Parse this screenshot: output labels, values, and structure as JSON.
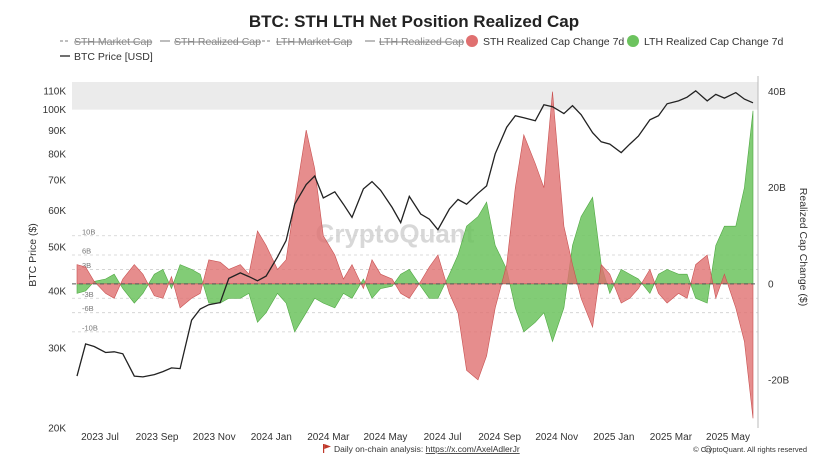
{
  "title": "BTC: STH LTH Net Position Realized Cap",
  "legend": [
    {
      "label": "STH Market Cap",
      "style": "dash",
      "color": "#999999",
      "struck": true
    },
    {
      "label": "STH Realized Cap",
      "style": "line",
      "color": "#999999",
      "struck": true
    },
    {
      "label": "LTH Market Cap",
      "style": "dash",
      "color": "#999999",
      "struck": true
    },
    {
      "label": "LTH Realized Cap",
      "style": "line",
      "color": "#999999",
      "struck": true
    },
    {
      "label": "STH Realized Cap Change 7d",
      "style": "dot",
      "color": "#e07070",
      "struck": false
    },
    {
      "label": "LTH Realized Cap Change 7d",
      "style": "dot",
      "color": "#6cc35e",
      "struck": false
    },
    {
      "label": "BTC Price [USD]",
      "style": "line",
      "color": "#222222",
      "struck": false
    }
  ],
  "footer": {
    "text": "Daily on-chain analysis: ",
    "link": "https://x.com/AxelAdlerJr",
    "credit": "© CryptoQuant. All rights reserved"
  },
  "watermark": "CryptoQuant",
  "chart_data": {
    "type": "line",
    "xlabel": "",
    "ylabel": "BTC Price ($)",
    "y2label": "Realized Cap Change ($)",
    "x_ticks": [
      "2023 Jul",
      "2023 Sep",
      "2023 Nov",
      "2024 Jan",
      "2024 Mar",
      "2024 May",
      "2024 Jul",
      "2024 Sep",
      "2024 Nov",
      "2025 Jan",
      "2025 Mar",
      "2025 May"
    ],
    "y_ticks": [
      "110K",
      "100K",
      "90K",
      "80K",
      "70K",
      "60K",
      "50K",
      "40K",
      "30K",
      "20K"
    ],
    "y_tick_values": [
      110000,
      100000,
      90000,
      80000,
      70000,
      60000,
      50000,
      40000,
      30000,
      20000
    ],
    "y_scale": "log",
    "ylim": [
      20000,
      115000
    ],
    "y2_ticks": [
      "40B",
      "20B",
      "0",
      "-20B"
    ],
    "y2_tick_values": [
      40,
      20,
      0,
      -20
    ],
    "y2lim": [
      -30,
      42
    ],
    "ref_lines": [
      {
        "value": 10,
        "label": "10B"
      },
      {
        "value": 6,
        "label": "6B"
      },
      {
        "value": 3,
        "label": "3B"
      },
      {
        "value": -3,
        "label": "-3B"
      },
      {
        "value": -6,
        "label": "-6B"
      },
      {
        "value": -10,
        "label": "-10B"
      }
    ],
    "shaded_region_above": 100000,
    "colors": {
      "sth": "#e07070",
      "lth": "#6cc35e",
      "price": "#222222"
    },
    "series": [
      {
        "name": "BTC Price [USD]",
        "axis": "left",
        "x": [
          0,
          0.3,
          0.6,
          1,
          1.3,
          1.6,
          2,
          2.3,
          2.7,
          3,
          3.3,
          3.6,
          4,
          4.3,
          4.6,
          5,
          5.3,
          5.7,
          6,
          6.3,
          6.6,
          7,
          7.3,
          7.6,
          8,
          8.3,
          8.6,
          9,
          9.3,
          9.6,
          10,
          10.3,
          10.6,
          11,
          11.3,
          11.6,
          12,
          12.3,
          12.6,
          13,
          13.3,
          13.6,
          14,
          14.3,
          14.6,
          15,
          15.3,
          15.6,
          16,
          16.3,
          16.6,
          17,
          17.3,
          17.6,
          18,
          18.3,
          18.6,
          19,
          19.3,
          19.6,
          20,
          20.3,
          20.6,
          21,
          21.3,
          21.6,
          22,
          22.3,
          22.6,
          23,
          23.3,
          23.6
        ],
        "values": [
          26000,
          30600,
          30200,
          29300,
          29400,
          29100,
          26000,
          25900,
          26200,
          26600,
          27100,
          27000,
          34500,
          36500,
          37300,
          37700,
          42600,
          43800,
          43000,
          42100,
          43100,
          47500,
          51600,
          62000,
          68500,
          71500,
          64000,
          66000,
          62000,
          58000,
          67000,
          69500,
          66500,
          61000,
          56500,
          64500,
          59000,
          57500,
          54500,
          60500,
          63500,
          62000,
          65500,
          68000,
          80000,
          91500,
          97000,
          96000,
          94500,
          102500,
          101500,
          98000,
          102000,
          97500,
          89000,
          85000,
          84000,
          80500,
          84000,
          87500,
          95000,
          97000,
          103000,
          104500,
          106500,
          110000,
          104500,
          108000,
          106000,
          109000,
          105500,
          103500
        ]
      },
      {
        "name": "STH Realized Cap Change 7d",
        "axis": "right",
        "x": [
          0,
          0.3,
          0.6,
          1,
          1.3,
          1.6,
          2,
          2.3,
          2.7,
          3,
          3.3,
          3.6,
          4,
          4.3,
          4.6,
          5,
          5.3,
          5.7,
          6,
          6.3,
          6.6,
          7,
          7.3,
          7.6,
          8,
          8.3,
          8.6,
          9,
          9.3,
          9.6,
          10,
          10.3,
          10.6,
          11,
          11.3,
          11.6,
          12,
          12.3,
          12.6,
          13,
          13.3,
          13.6,
          14,
          14.3,
          14.6,
          15,
          15.3,
          15.6,
          16,
          16.3,
          16.6,
          17,
          17.3,
          17.6,
          18,
          18.3,
          18.6,
          19,
          19.3,
          19.6,
          20,
          20.3,
          20.6,
          21,
          21.3,
          21.6,
          22,
          22.3,
          22.6,
          23,
          23.3,
          23.6
        ],
        "values": [
          4,
          3.5,
          0.5,
          -2,
          -3,
          1,
          4,
          2,
          -2.5,
          -3,
          1.5,
          -5,
          -3,
          -2,
          5,
          4.5,
          3,
          4,
          2,
          11,
          8,
          3,
          5,
          17,
          32,
          24,
          10,
          6,
          1,
          4,
          -1,
          5,
          2,
          1,
          -2,
          -3,
          0.5,
          3.5,
          6,
          -2,
          -6,
          -18,
          -20,
          -15,
          -5,
          4,
          20,
          31,
          25,
          20,
          40,
          12,
          4,
          -3,
          -9,
          4,
          2,
          -4,
          -3,
          -1,
          3,
          -2,
          -4,
          -2,
          -3,
          4,
          6,
          -3,
          2,
          -5,
          -12,
          -28
        ]
      },
      {
        "name": "LTH Realized Cap Change 7d",
        "axis": "right",
        "x": [
          0,
          0.3,
          0.6,
          1,
          1.3,
          1.6,
          2,
          2.3,
          2.7,
          3,
          3.3,
          3.6,
          4,
          4.3,
          4.6,
          5,
          5.3,
          5.7,
          6,
          6.3,
          6.6,
          7,
          7.3,
          7.6,
          8,
          8.3,
          8.6,
          9,
          9.3,
          9.6,
          10,
          10.3,
          10.6,
          11,
          11.3,
          11.6,
          12,
          12.3,
          12.6,
          13,
          13.3,
          13.6,
          14,
          14.3,
          14.6,
          15,
          15.3,
          15.6,
          16,
          16.3,
          16.6,
          17,
          17.3,
          17.6,
          18,
          18.3,
          18.6,
          19,
          19.3,
          19.6,
          20,
          20.3,
          20.6,
          21,
          21.3,
          21.6,
          22,
          22.3,
          22.6,
          23,
          23.3,
          23.6
        ],
        "values": [
          -2,
          -1.5,
          0.5,
          1,
          2,
          -1,
          -4,
          -2,
          2,
          3,
          -1,
          4,
          3,
          2,
          -4,
          -4,
          -3,
          -3,
          -2,
          -8,
          -6,
          -2,
          -4,
          -10,
          -6,
          -3,
          -4,
          -5,
          -2,
          -3,
          1,
          -3,
          -1,
          -0.5,
          2,
          3,
          -0.5,
          -3,
          -3,
          2,
          6,
          12,
          14,
          17,
          8,
          3,
          -5,
          -10,
          -8,
          -6,
          -12,
          -5,
          8,
          14,
          18,
          4,
          -2,
          3,
          2,
          1,
          -2,
          2,
          3,
          2,
          2,
          -3,
          -4,
          8,
          12,
          12,
          20,
          36
        ]
      }
    ]
  }
}
